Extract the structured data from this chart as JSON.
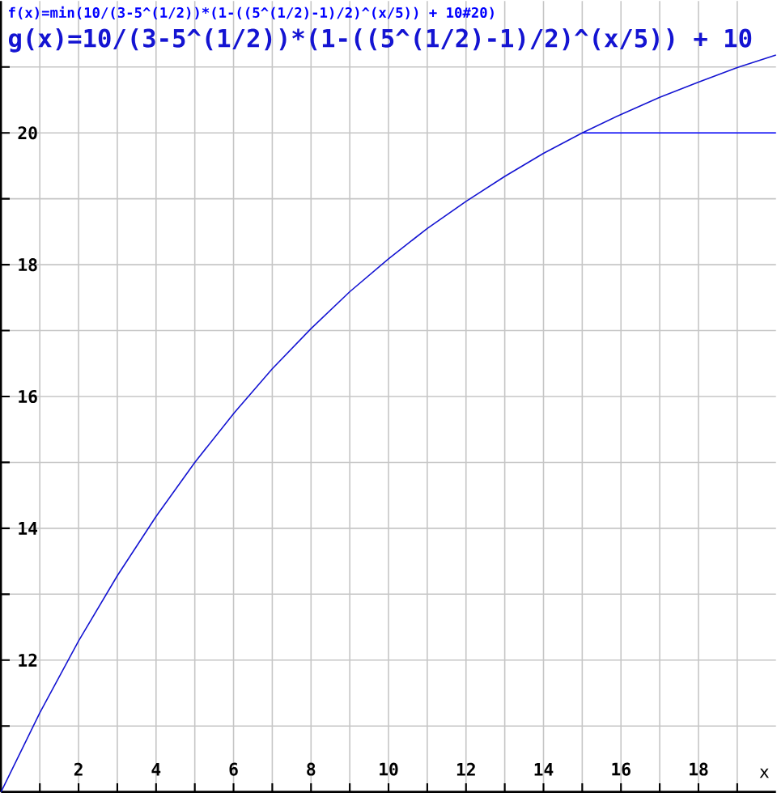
{
  "chart_data": {
    "type": "line",
    "xlabel": "x",
    "x": [
      0,
      1,
      2,
      3,
      4,
      5,
      6,
      7,
      8,
      9,
      10,
      11,
      12,
      13,
      14,
      15,
      16,
      17,
      18,
      19,
      20
    ],
    "series": [
      {
        "name": "f(x)=min(10/(3-5^(1/2))*(1-((5^(1/2)-1)/2)^(x/5)) + 10#20)",
        "color": "#0000ff",
        "values": [
          null,
          null,
          null,
          null,
          null,
          null,
          null,
          null,
          null,
          null,
          null,
          null,
          null,
          null,
          null,
          20,
          20,
          20,
          20,
          20,
          20
        ]
      },
      {
        "name": "g(x)=10/(3-5^(1/2))*(1-((5^(1/2)-1)/2)^(x/5)) + 10",
        "color": "#1414d2",
        "values": [
          10,
          11.2,
          12.29,
          13.28,
          14.18,
          15.0,
          15.74,
          16.42,
          17.03,
          17.59,
          18.09,
          18.55,
          18.96,
          19.34,
          19.69,
          20.0,
          20.28,
          20.54,
          20.77,
          20.99,
          21.18
        ]
      }
    ],
    "xlim": [
      0,
      20
    ],
    "ylim": [
      10,
      22
    ],
    "xticks": [
      {
        "value": 1,
        "label": null
      },
      2,
      {
        "value": 3,
        "label": null
      },
      4,
      {
        "value": 5,
        "label": null
      },
      6,
      {
        "value": 7,
        "label": null
      },
      8,
      {
        "value": 9,
        "label": null
      },
      10,
      {
        "value": 11,
        "label": null
      },
      12,
      {
        "value": 13,
        "label": null
      },
      14,
      {
        "value": 15,
        "label": null
      },
      16,
      {
        "value": 17,
        "label": null
      },
      18,
      {
        "value": 19,
        "label": null
      }
    ],
    "yticks": [
      {
        "value": 11,
        "label": null
      },
      12,
      {
        "value": 13,
        "label": null
      },
      14,
      {
        "value": 15,
        "label": null
      },
      16,
      {
        "value": 17,
        "label": null
      },
      18,
      {
        "value": 19,
        "label": null
      },
      20,
      {
        "value": 21,
        "label": null
      }
    ],
    "grid": true,
    "marker": "none",
    "line_style": "solid"
  }
}
